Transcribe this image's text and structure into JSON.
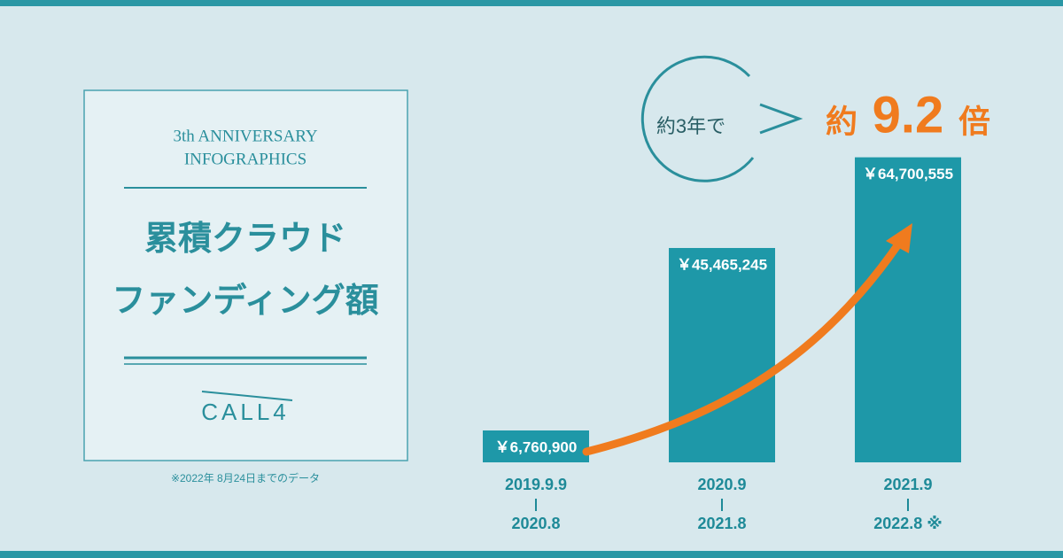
{
  "panel": {
    "subtitle_lines": [
      "3th ANNIVERSARY",
      "INFOGRAPHICS"
    ],
    "title_lines": [
      "累積クラウド",
      "ファンディング額"
    ],
    "logo": "CALL4",
    "footnote": "※2022年 8月24日までのデータ"
  },
  "chart_data": {
    "type": "bar",
    "categories": [
      [
        "2019.9.9",
        "2020.8"
      ],
      [
        "2020.9",
        "2021.8"
      ],
      [
        "2021.9",
        "2022.8 ※"
      ]
    ],
    "values": [
      6760900,
      45465245,
      64700555
    ],
    "value_labels": [
      "￥6,760,900",
      "￥45,465,245",
      "￥64,700,555"
    ],
    "color": "#1e98a8",
    "ylim": [
      0,
      65000000
    ],
    "annotation": {
      "lead": "約3年で",
      "prefix": "約",
      "value": 9.2,
      "suffix": "倍"
    }
  }
}
